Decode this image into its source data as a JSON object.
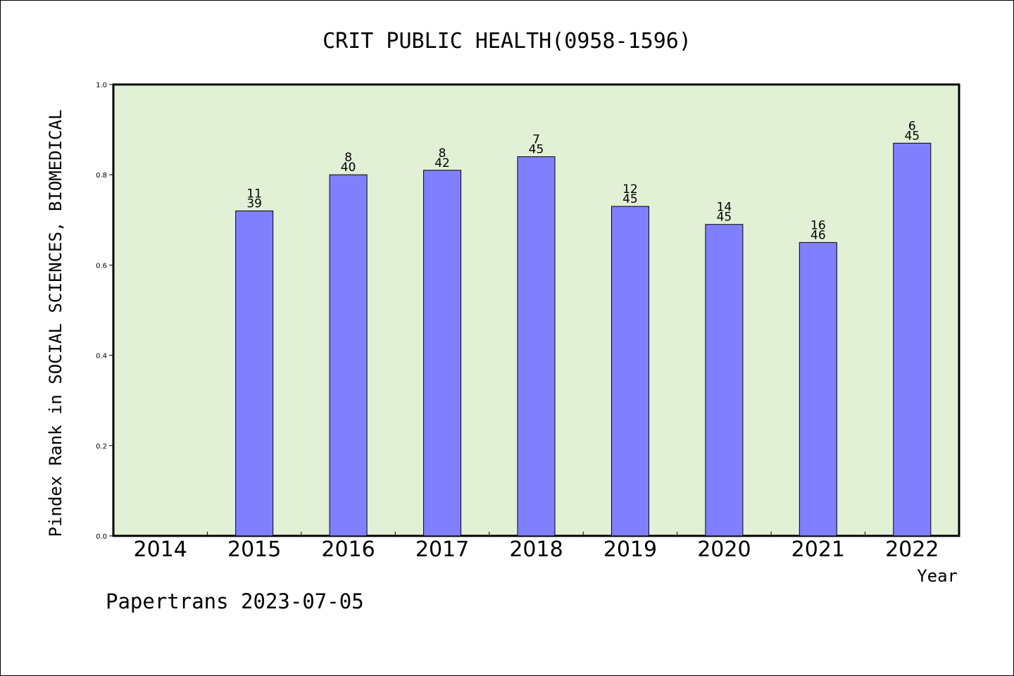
{
  "chart_data": {
    "type": "bar",
    "title": "CRIT PUBLIC HEALTH(0958-1596)",
    "xlabel": "Year",
    "ylabel": "Pindex Rank in SOCIAL SCIENCES, BIOMEDICAL",
    "ylim": [
      0,
      1.0
    ],
    "yticks": [
      "0.0",
      "0.2",
      "0.4",
      "0.6",
      "0.8",
      "1.0"
    ],
    "categories": [
      "2014",
      "2015",
      "2016",
      "2017",
      "2018",
      "2019",
      "2020",
      "2021",
      "2022"
    ],
    "values": [
      null,
      0.72,
      0.8,
      0.81,
      0.84,
      0.73,
      0.69,
      0.65,
      0.87
    ],
    "rank": [
      "",
      "11",
      "8",
      "8",
      "7",
      "12",
      "14",
      "16",
      "6"
    ],
    "total": [
      "",
      "39",
      "40",
      "42",
      "45",
      "45",
      "45",
      "46",
      "45"
    ],
    "grid": false,
    "legend": "none"
  },
  "colors": {
    "plot_background": "#e2f0d6",
    "bar_fill": "#8080ff",
    "bar_stroke": "#000000"
  },
  "footer": "Papertrans 2023-07-05"
}
